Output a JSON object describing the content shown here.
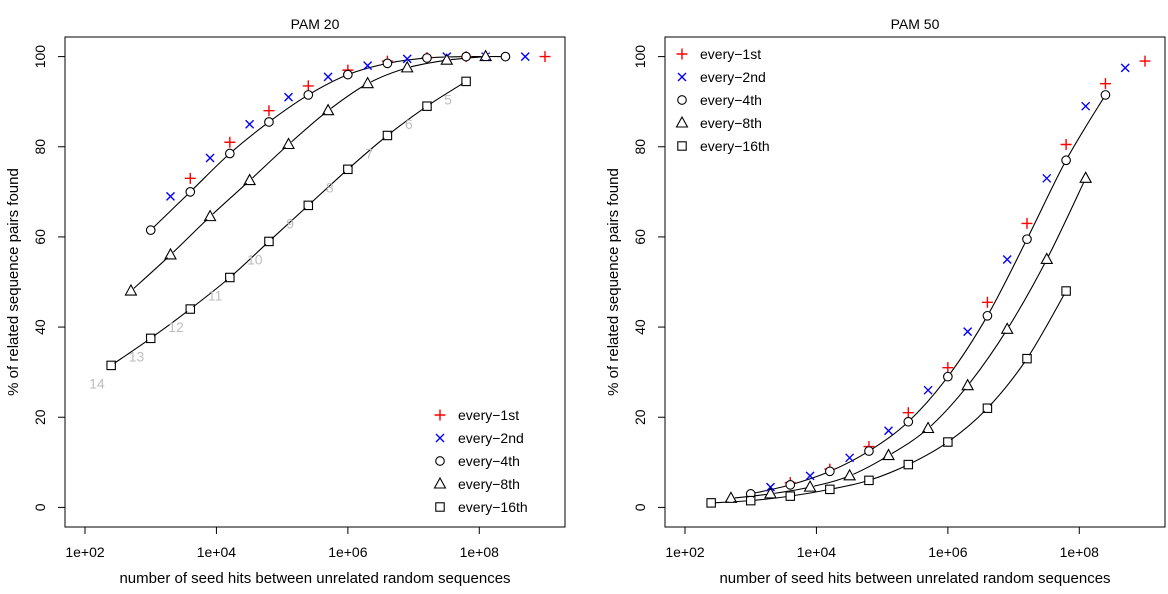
{
  "colors": {
    "every_1st": "#ff0000",
    "every_2nd": "#0000ff",
    "black": "#000000",
    "label_gray": "#bebebe"
  },
  "chart_data": [
    {
      "type": "scatter",
      "title": "PAM 20",
      "xlabel": "number of seed hits between unrelated random sequences",
      "ylabel": "% of related sequence pairs found",
      "x_scale": "log10",
      "xlim": [
        100,
        1000000000.0
      ],
      "ylim": [
        0,
        100
      ],
      "xticks": [
        "1e+02",
        "1e+04",
        "1e+06",
        "1e+08"
      ],
      "xtick_values": [
        100,
        10000,
        1000000,
        100000000
      ],
      "yticks": [
        "0",
        "20",
        "40",
        "60",
        "80",
        "100"
      ],
      "ytick_values": [
        0,
        20,
        40,
        60,
        80,
        100
      ],
      "legend_position": "bottom-right",
      "series": [
        {
          "name": "every−1st",
          "marker": "plus",
          "color": "#ff0000",
          "x": [
            4000,
            16000,
            63000,
            250000,
            1000000,
            4000000,
            16000000,
            63000000,
            1000000000
          ],
          "y": [
            73,
            81,
            88,
            93.5,
            97,
            99,
            99.8,
            100,
            100
          ]
        },
        {
          "name": "every−2nd",
          "marker": "cross",
          "color": "#0000ff",
          "x": [
            2000,
            8000,
            32000,
            125000,
            500000,
            2000000,
            8000000,
            32000000,
            125000000,
            500000000
          ],
          "y": [
            69,
            77.5,
            85,
            91,
            95.5,
            98,
            99.5,
            100,
            100,
            100
          ]
        },
        {
          "name": "every−4th",
          "marker": "circle",
          "color": "#000000",
          "x": [
            1000,
            4000,
            16000,
            63000,
            250000,
            1000000,
            4000000,
            16000000,
            63000000,
            250000000
          ],
          "y": [
            61.5,
            70,
            78.5,
            85.5,
            91.5,
            96,
            98.5,
            99.7,
            100,
            100
          ]
        },
        {
          "name": "every−8th",
          "marker": "triangle",
          "color": "#000000",
          "x": [
            500,
            2000,
            8000,
            32000,
            125000,
            500000,
            2000000,
            8000000,
            32000000,
            125000000
          ],
          "y": [
            48,
            56,
            64.5,
            72.5,
            80.5,
            88,
            94,
            97.5,
            99.2,
            100
          ]
        },
        {
          "name": "every−16th",
          "marker": "square",
          "color": "#000000",
          "x": [
            250,
            1000,
            4000,
            16000,
            63000,
            250000,
            1000000,
            4000000,
            16000000,
            63000000
          ],
          "y": [
            31.5,
            37.5,
            44,
            51,
            59,
            67,
            75,
            82.5,
            89,
            94.5
          ]
        }
      ],
      "point_labels": {
        "series": "every−16th",
        "labels": [
          "14",
          "13",
          "12",
          "11",
          "10",
          "9",
          "8",
          "7",
          "6",
          "5"
        ]
      }
    },
    {
      "type": "scatter",
      "title": "PAM 50",
      "xlabel": "number of seed hits between unrelated random sequences",
      "ylabel": "% of related sequence pairs found",
      "x_scale": "log10",
      "xlim": [
        100,
        1000000000.0
      ],
      "ylim": [
        0,
        100
      ],
      "xticks": [
        "1e+02",
        "1e+04",
        "1e+06",
        "1e+08"
      ],
      "xtick_values": [
        100,
        10000,
        1000000,
        100000000
      ],
      "yticks": [
        "0",
        "20",
        "40",
        "60",
        "80",
        "100"
      ],
      "ytick_values": [
        0,
        20,
        40,
        60,
        80,
        100
      ],
      "legend_position": "top-left",
      "series": [
        {
          "name": "every−1st",
          "marker": "plus",
          "color": "#ff0000",
          "x": [
            4000,
            16000,
            63000,
            250000,
            1000000,
            4000000,
            16000000,
            63000000,
            250000000,
            1000000000
          ],
          "y": [
            5.5,
            8.5,
            13.5,
            21,
            31,
            45.5,
            63,
            80.5,
            94,
            99
          ]
        },
        {
          "name": "every−2nd",
          "marker": "cross",
          "color": "#0000ff",
          "x": [
            2000,
            8000,
            32000,
            125000,
            500000,
            2000000,
            8000000,
            32000000,
            125000000,
            500000000
          ],
          "y": [
            4.5,
            7,
            11,
            17,
            26,
            39,
            55,
            73,
            89,
            97.5
          ]
        },
        {
          "name": "every−4th",
          "marker": "circle",
          "color": "#000000",
          "x": [
            1000,
            4000,
            16000,
            63000,
            250000,
            1000000,
            4000000,
            16000000,
            63000000,
            250000000
          ],
          "y": [
            3,
            5,
            8,
            12.5,
            19,
            29,
            42.5,
            59.5,
            77,
            91.5
          ]
        },
        {
          "name": "every−8th",
          "marker": "triangle",
          "color": "#000000",
          "x": [
            500,
            2000,
            8000,
            32000,
            125000,
            500000,
            2000000,
            8000000,
            32000000,
            125000000
          ],
          "y": [
            2,
            3,
            4.5,
            7,
            11.5,
            17.5,
            27,
            39.5,
            55,
            73
          ]
        },
        {
          "name": "every−16th",
          "marker": "square",
          "color": "#000000",
          "x": [
            250,
            1000,
            4000,
            16000,
            63000,
            250000,
            1000000,
            4000000,
            16000000,
            63000000
          ],
          "y": [
            1,
            1.5,
            2.5,
            4,
            6,
            9.5,
            14.5,
            22,
            33,
            48
          ]
        }
      ]
    }
  ]
}
